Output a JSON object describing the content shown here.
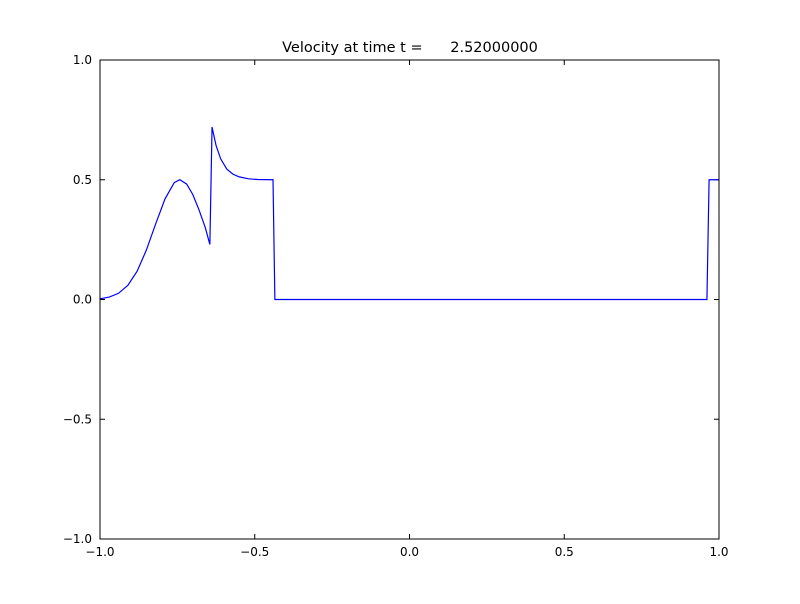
{
  "chart_data": {
    "type": "line",
    "title": "Velocity at time t =      2.52000000",
    "x": [
      -1.0,
      -0.97,
      -0.94,
      -0.91,
      -0.88,
      -0.85,
      -0.82,
      -0.79,
      -0.76,
      -0.742,
      -0.72,
      -0.7,
      -0.68,
      -0.66,
      -0.645,
      -0.638,
      -0.625,
      -0.61,
      -0.59,
      -0.57,
      -0.55,
      -0.52,
      -0.49,
      -0.441,
      -0.435,
      0.961,
      0.968,
      1.0
    ],
    "series": [
      {
        "color": "#0000ff",
        "values": [
          0.003,
          0.01,
          0.026,
          0.059,
          0.118,
          0.207,
          0.316,
          0.42,
          0.488,
          0.5,
          0.482,
          0.438,
          0.374,
          0.301,
          0.23,
          0.72,
          0.643,
          0.587,
          0.544,
          0.523,
          0.512,
          0.504,
          0.501,
          0.5,
          0,
          0,
          0.5,
          0.5
        ]
      }
    ],
    "xlim": [
      -1.0,
      1.0
    ],
    "ylim": [
      -1.0,
      1.0
    ],
    "xticks": [
      {
        "value": -1.0,
        "label": "−1.0"
      },
      {
        "value": -0.5,
        "label": "−0.5"
      },
      {
        "value": 0,
        "label": "0.0"
      },
      0.5,
      {
        "value": 1.0,
        "label": "1.0"
      }
    ],
    "yticks": [
      {
        "value": -1.0,
        "label": "−1.0"
      },
      {
        "value": -0.5,
        "label": "−0.5"
      },
      {
        "value": 0,
        "label": "0.0"
      },
      0.5,
      {
        "value": 1.0,
        "label": "1.0"
      }
    ],
    "grid": false
  }
}
